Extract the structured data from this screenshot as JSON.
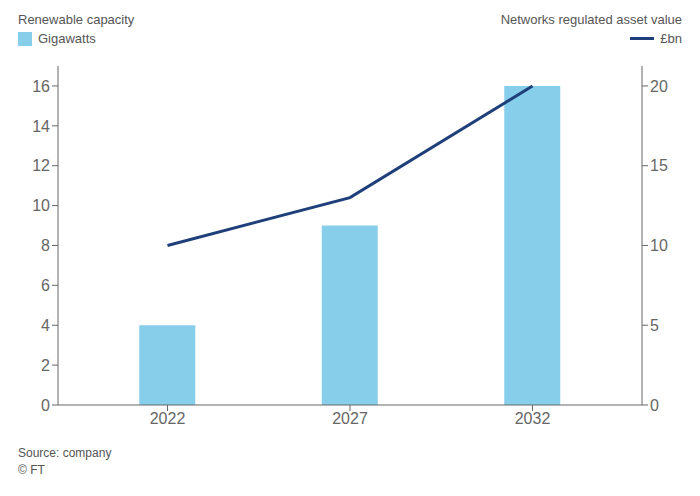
{
  "chart_data": {
    "type": "bar",
    "ylabel": "Renewable capacity",
    "y2label": "Networks regulated asset value",
    "x": [
      2022,
      2027,
      2032
    ],
    "xlim": [
      2019,
      2035
    ],
    "xticks": [
      2022,
      2027,
      2032
    ],
    "ylim": [
      0,
      17
    ],
    "yticks": [
      0,
      2,
      4,
      6,
      8,
      10,
      12,
      14,
      16
    ],
    "y2lim": [
      0,
      21.25
    ],
    "y2ticks": [
      0,
      5,
      10,
      15,
      20
    ],
    "series": [
      {
        "name": "Gigawatts",
        "type": "bar",
        "color": "#87CEEB",
        "values": [
          4,
          9,
          16
        ]
      },
      {
        "name": "£bn",
        "type": "line",
        "color": "#1f3f7a",
        "values": [
          10,
          13,
          20
        ],
        "axis": "y2"
      }
    ],
    "grid": false,
    "legend": "top",
    "annotations": [
      "Source: company",
      "© FT"
    ]
  }
}
